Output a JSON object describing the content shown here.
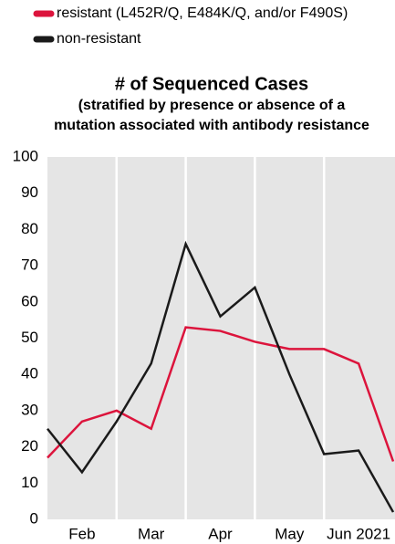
{
  "chart_data": {
    "type": "line",
    "title": "# of Sequenced Cases",
    "subtitle": [
      "(stratified by presence or absence of a",
      "mutation associated with antibody resistance"
    ],
    "categories": [
      null,
      "Feb",
      null,
      "Mar",
      null,
      "Apr",
      null,
      "May",
      null,
      "Jun 2021",
      null
    ],
    "series": [
      {
        "name": "resistant (L452R/Q, E484K/Q, and/or F490S)",
        "color": "#dc143c",
        "values": [
          17,
          27,
          30,
          25,
          53,
          52,
          49,
          47,
          47,
          43,
          16
        ]
      },
      {
        "name": "non-resistant",
        "color": "#1a1a1a",
        "values": [
          25,
          13,
          27,
          43,
          76,
          56,
          64,
          40,
          18,
          19,
          2
        ]
      }
    ],
    "ylim": [
      0,
      100
    ],
    "yticks": [
      0,
      10,
      20,
      30,
      40,
      50,
      60,
      70,
      80,
      90,
      100
    ]
  }
}
